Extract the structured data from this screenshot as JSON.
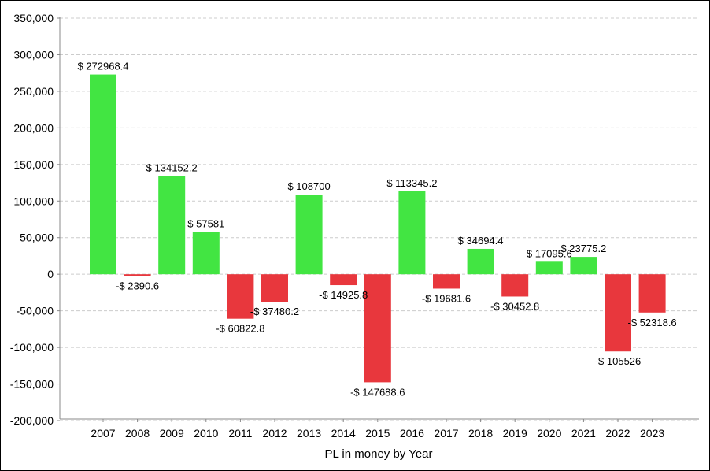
{
  "chart_data": {
    "type": "bar",
    "title": "",
    "xlabel": "PL in money by Year",
    "ylabel": "",
    "categories": [
      "2007",
      "2008",
      "2009",
      "2010",
      "2011",
      "2012",
      "2013",
      "2014",
      "2015",
      "2016",
      "2017",
      "2018",
      "2019",
      "2020",
      "2021",
      "2022",
      "2023"
    ],
    "values": [
      272968.4,
      -2390.6,
      134152.2,
      57581,
      -60822.8,
      -37480.2,
      108700,
      -14925.8,
      -147688.6,
      113345.2,
      -19681.6,
      34694.4,
      -30452.8,
      17095.6,
      23775.2,
      -105526,
      -52318.6
    ],
    "data_labels": [
      "$ 272968.4",
      "-$ 2390.6",
      "$ 134152.2",
      "$ 57581",
      "-$ 60822.8",
      "-$ 37480.2",
      "$ 108700",
      "-$ 14925.8",
      "-$ 147688.6",
      "$ 113345.2",
      "-$ 19681.6",
      "$ 34694.4",
      "-$ 30452.8",
      "$ 17095.6",
      "$ 23775.2",
      "-$ 105526",
      "-$ 52318.6"
    ],
    "ylim": [
      -200000,
      350000
    ],
    "yticks": [
      350000,
      300000,
      250000,
      200000,
      150000,
      100000,
      50000,
      0,
      -50000,
      -100000,
      -150000,
      -200000
    ],
    "ytick_labels": [
      "350,000",
      "300,000",
      "250,000",
      "200,000",
      "150,000",
      "100,000",
      "50,000",
      "0",
      "-50,000",
      "-100,000",
      "-150,000",
      "-200,000"
    ],
    "grid": true,
    "legend": "none",
    "colors": {
      "positive": "#42e542",
      "negative": "#e8373d",
      "grid": "#cccccc",
      "axis": "#888888"
    }
  }
}
